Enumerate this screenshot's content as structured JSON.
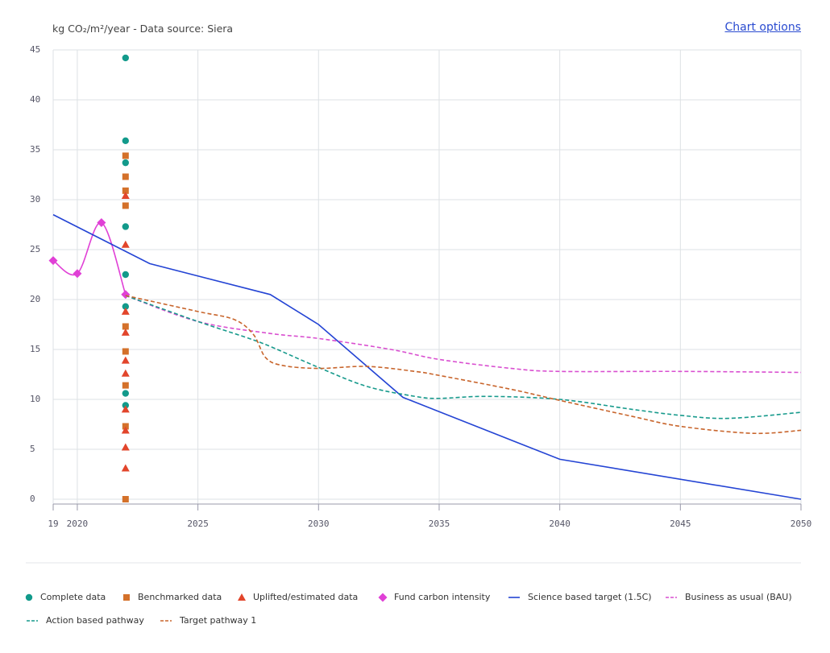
{
  "chart_data": {
    "type": "combo",
    "ylabel": "kg CO₂/m²/year - Data source: Siera",
    "action": "Chart options",
    "xlim": [
      2019,
      2050
    ],
    "xticks": [
      {
        "value": 2019,
        "label": "19"
      },
      2020,
      2025,
      2030,
      2035,
      2040,
      2045,
      2050
    ],
    "ylim": [
      0,
      45
    ],
    "yticks": [
      0,
      5,
      10,
      15,
      20,
      25,
      30,
      35,
      40,
      45
    ],
    "grid": true,
    "series": [
      {
        "name": "Complete data",
        "kind": "scatter",
        "marker": "circle",
        "color": "#129a8b",
        "x": [
          2022,
          2022,
          2022,
          2022,
          2022,
          2022,
          2022,
          2022
        ],
        "values": [
          44.2,
          35.9,
          33.7,
          27.3,
          22.5,
          19.3,
          10.6,
          9.4
        ]
      },
      {
        "name": "Benchmarked data",
        "kind": "scatter",
        "marker": "square",
        "color": "#d4712a",
        "x": [
          2022,
          2022,
          2022,
          2022,
          2022,
          2022,
          2022,
          2022,
          2022
        ],
        "values": [
          34.4,
          32.3,
          30.9,
          29.4,
          17.3,
          14.8,
          11.4,
          7.3,
          0
        ]
      },
      {
        "name": "Uplifted/estimated data",
        "kind": "scatter",
        "marker": "triangle",
        "color": "#e2452b",
        "x": [
          2022,
          2022,
          2022,
          2022,
          2022,
          2022,
          2022,
          2022,
          2022,
          2022
        ],
        "values": [
          30.4,
          25.5,
          18.8,
          16.7,
          13.9,
          12.6,
          9.0,
          6.9,
          5.2,
          3.1
        ]
      },
      {
        "name": "Fund carbon intensity",
        "kind": "line",
        "marker": "diamond",
        "color": "#e040d6",
        "smooth": true,
        "x": [
          2019,
          2020,
          2021,
          2022
        ],
        "values": [
          23.9,
          22.6,
          27.7,
          20.5
        ]
      },
      {
        "name": "Science based target (1.5C)",
        "kind": "line",
        "color": "#2444d4",
        "x": [
          2019,
          2023,
          2028,
          2030,
          2033.5,
          2040,
          2050
        ],
        "values": [
          28.5,
          23.6,
          20.5,
          17.5,
          10.2,
          4.0,
          0
        ]
      },
      {
        "name": "Business as usual (BAU)",
        "kind": "line",
        "dash": true,
        "smooth": true,
        "color": "#d94fd0",
        "x": [
          2022,
          2025,
          2028,
          2030,
          2033,
          2035,
          2038,
          2040,
          2045,
          2050
        ],
        "values": [
          20.4,
          17.8,
          16.6,
          16.1,
          15.0,
          14.0,
          13.1,
          12.8,
          12.8,
          12.7
        ]
      },
      {
        "name": "Action based pathway",
        "kind": "line",
        "dash": true,
        "smooth": true,
        "color": "#179a8c",
        "x": [
          2022,
          2025,
          2027,
          2028,
          2030,
          2032,
          2034,
          2035,
          2037,
          2040,
          2043,
          2045,
          2047,
          2050
        ],
        "values": [
          20.4,
          17.8,
          16.2,
          15.3,
          13.2,
          11.3,
          10.3,
          10.1,
          10.3,
          10.0,
          9.0,
          8.4,
          8.1,
          8.7
        ]
      },
      {
        "name": "Target pathway 1",
        "kind": "line",
        "dash": true,
        "smooth": true,
        "color": "#c8652c",
        "x": [
          2022,
          2025,
          2026.5,
          2027.3,
          2027.8,
          2028.5,
          2030,
          2032,
          2034,
          2035,
          2038,
          2040,
          2043,
          2045,
          2048,
          2050
        ],
        "values": [
          20.4,
          18.8,
          18.0,
          16.5,
          14.2,
          13.4,
          13.1,
          13.3,
          12.8,
          12.4,
          11.0,
          9.9,
          8.3,
          7.3,
          6.6,
          6.9
        ]
      }
    ]
  }
}
